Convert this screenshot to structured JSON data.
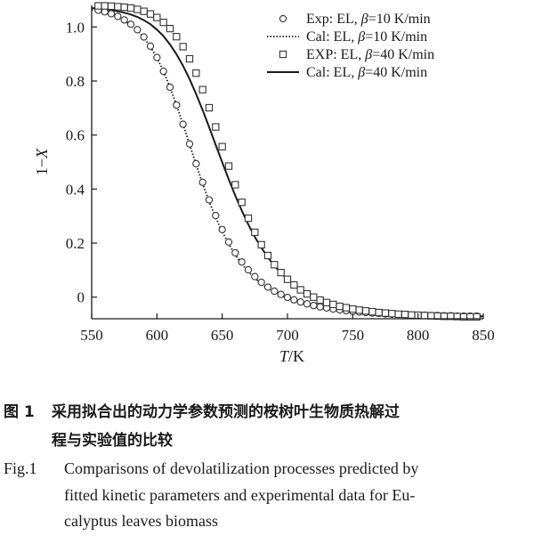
{
  "chart_data": {
    "type": "line",
    "title": "",
    "xlabel": {
      "var": "T",
      "unit": "/K"
    },
    "ylabel": {
      "prefix": "1−",
      "var": "X"
    },
    "xlim": [
      550,
      850
    ],
    "ylim": [
      -0.08,
      1.08
    ],
    "x_ticks": [
      "550",
      "600",
      "650",
      "700",
      "750",
      "800",
      "850"
    ],
    "y_ticks": [
      "0",
      "0.2",
      "0.4",
      "0.6",
      "0.8",
      "1.0"
    ],
    "grid": false,
    "legend_position": "top-right",
    "series": [
      {
        "name": "Exp: EL, β=10 K/min",
        "style": "open-circle",
        "x": [
          555,
          560,
          565,
          570,
          575,
          580,
          585,
          590,
          595,
          600,
          605,
          610,
          615,
          620,
          625,
          630,
          635,
          640,
          645,
          650,
          655,
          660,
          665,
          670,
          675,
          680,
          685,
          690,
          695,
          700,
          705,
          710,
          715,
          720,
          725,
          730,
          735,
          740,
          745,
          750,
          755,
          760,
          765,
          770,
          775,
          780,
          785,
          790,
          795,
          800,
          805,
          810,
          815,
          820,
          825,
          830,
          835,
          840,
          845
        ],
        "y": [
          1.062,
          1.056,
          1.049,
          1.039,
          1.026,
          1.01,
          0.99,
          0.963,
          0.929,
          0.887,
          0.836,
          0.777,
          0.711,
          0.64,
          0.567,
          0.494,
          0.425,
          0.36,
          0.302,
          0.25,
          0.204,
          0.164,
          0.13,
          0.101,
          0.076,
          0.055,
          0.037,
          0.022,
          0.01,
          -0.001,
          -0.01,
          -0.018,
          -0.025,
          -0.031,
          -0.036,
          -0.04,
          -0.044,
          -0.047,
          -0.05,
          -0.053,
          -0.055,
          -0.057,
          -0.059,
          -0.06,
          -0.062,
          -0.063,
          -0.064,
          -0.065,
          -0.066,
          -0.067,
          -0.067,
          -0.068,
          -0.068,
          -0.069,
          -0.069,
          -0.07,
          -0.07,
          -0.07,
          -0.07
        ]
      },
      {
        "name": "Cal: EL, β=10 K/min",
        "style": "dotted",
        "x": [
          550,
          555,
          560,
          565,
          570,
          575,
          580,
          585,
          590,
          595,
          600,
          605,
          610,
          615,
          620,
          625,
          630,
          635,
          640,
          645,
          650,
          655,
          660,
          665,
          670,
          675,
          680,
          685,
          690,
          695,
          700,
          705,
          710,
          715,
          720,
          725,
          730,
          735,
          740,
          745,
          750,
          755,
          760,
          765,
          770,
          775,
          780,
          785,
          790,
          795,
          800,
          805,
          810,
          815,
          820,
          825,
          830,
          835,
          840,
          845,
          850
        ],
        "y": [
          1.064,
          1.059,
          1.053,
          1.045,
          1.036,
          1.023,
          1.007,
          0.987,
          0.96,
          0.927,
          0.886,
          0.836,
          0.777,
          0.711,
          0.639,
          0.565,
          0.491,
          0.42,
          0.354,
          0.295,
          0.242,
          0.197,
          0.157,
          0.123,
          0.095,
          0.07,
          0.05,
          0.033,
          0.018,
          0.006,
          -0.005,
          -0.014,
          -0.022,
          -0.029,
          -0.035,
          -0.04,
          -0.044,
          -0.048,
          -0.051,
          -0.054,
          -0.057,
          -0.059,
          -0.061,
          -0.062,
          -0.064,
          -0.065,
          -0.066,
          -0.067,
          -0.068,
          -0.069,
          -0.069,
          -0.07,
          -0.07,
          -0.071,
          -0.071,
          -0.071,
          -0.072,
          -0.072,
          -0.072,
          -0.072,
          -0.072
        ]
      },
      {
        "name": "EXP: EL, β=40 K/min",
        "style": "open-square",
        "x": [
          555,
          560,
          565,
          570,
          575,
          580,
          585,
          590,
          595,
          600,
          605,
          610,
          615,
          620,
          625,
          630,
          635,
          640,
          645,
          650,
          655,
          660,
          665,
          670,
          675,
          680,
          685,
          690,
          695,
          700,
          705,
          710,
          715,
          720,
          725,
          730,
          735,
          740,
          745,
          750,
          755,
          760,
          765,
          770,
          775,
          780,
          785,
          790,
          795,
          800,
          805,
          810,
          815,
          820,
          825,
          830,
          835,
          840,
          845
        ],
        "y": [
          1.078,
          1.078,
          1.077,
          1.075,
          1.073,
          1.07,
          1.065,
          1.058,
          1.048,
          1.035,
          1.017,
          0.994,
          0.964,
          0.927,
          0.882,
          0.829,
          0.768,
          0.701,
          0.63,
          0.557,
          0.485,
          0.416,
          0.351,
          0.292,
          0.24,
          0.194,
          0.154,
          0.12,
          0.091,
          0.066,
          0.045,
          0.027,
          0.012,
          0.0,
          -0.011,
          -0.02,
          -0.027,
          -0.034,
          -0.039,
          -0.044,
          -0.048,
          -0.051,
          -0.054,
          -0.057,
          -0.059,
          -0.061,
          -0.063,
          -0.064,
          -0.066,
          -0.067,
          -0.068,
          -0.069,
          -0.07,
          -0.071,
          -0.071,
          -0.072,
          -0.073,
          -0.073,
          -0.073
        ]
      },
      {
        "name": "Cal: EL, β=40 K/min",
        "style": "solid",
        "x": [
          550,
          555,
          560,
          565,
          570,
          575,
          580,
          585,
          590,
          595,
          600,
          605,
          610,
          615,
          620,
          625,
          630,
          635,
          640,
          645,
          650,
          655,
          660,
          665,
          670,
          675,
          680,
          685,
          690,
          695,
          700,
          705,
          710,
          715,
          720,
          725,
          730,
          735,
          740,
          745,
          750,
          755,
          760,
          765,
          770,
          775,
          780,
          785,
          790,
          795,
          800,
          805,
          810,
          815,
          820,
          825,
          830,
          835,
          840,
          845,
          850
        ],
        "y": [
          1.07,
          1.068,
          1.065,
          1.062,
          1.058,
          1.053,
          1.046,
          1.037,
          1.025,
          1.01,
          0.99,
          0.966,
          0.935,
          0.899,
          0.856,
          0.807,
          0.752,
          0.692,
          0.629,
          0.564,
          0.499,
          0.436,
          0.376,
          0.32,
          0.269,
          0.223,
          0.183,
          0.147,
          0.116,
          0.089,
          0.066,
          0.046,
          0.029,
          0.015,
          0.003,
          -0.008,
          -0.017,
          -0.025,
          -0.031,
          -0.037,
          -0.042,
          -0.046,
          -0.05,
          -0.053,
          -0.056,
          -0.058,
          -0.06,
          -0.062,
          -0.063,
          -0.065,
          -0.066,
          -0.067,
          -0.068,
          -0.068,
          -0.069,
          -0.069,
          -0.07,
          -0.07,
          -0.07,
          -0.071,
          -0.071
        ]
      }
    ]
  },
  "caption": {
    "zh_label": "图 1",
    "zh_line1": "采用拟合出的动力学参数预测的桉树叶生物质热解过",
    "zh_line2": "程与实验值的比较",
    "en_label": "Fig.1",
    "en_line1": "Comparisons of devolatilization processes predicted by",
    "en_line2": "fitted kinetic parameters and experimental data for Eu-",
    "en_line3": "calyptus leaves biomass"
  }
}
